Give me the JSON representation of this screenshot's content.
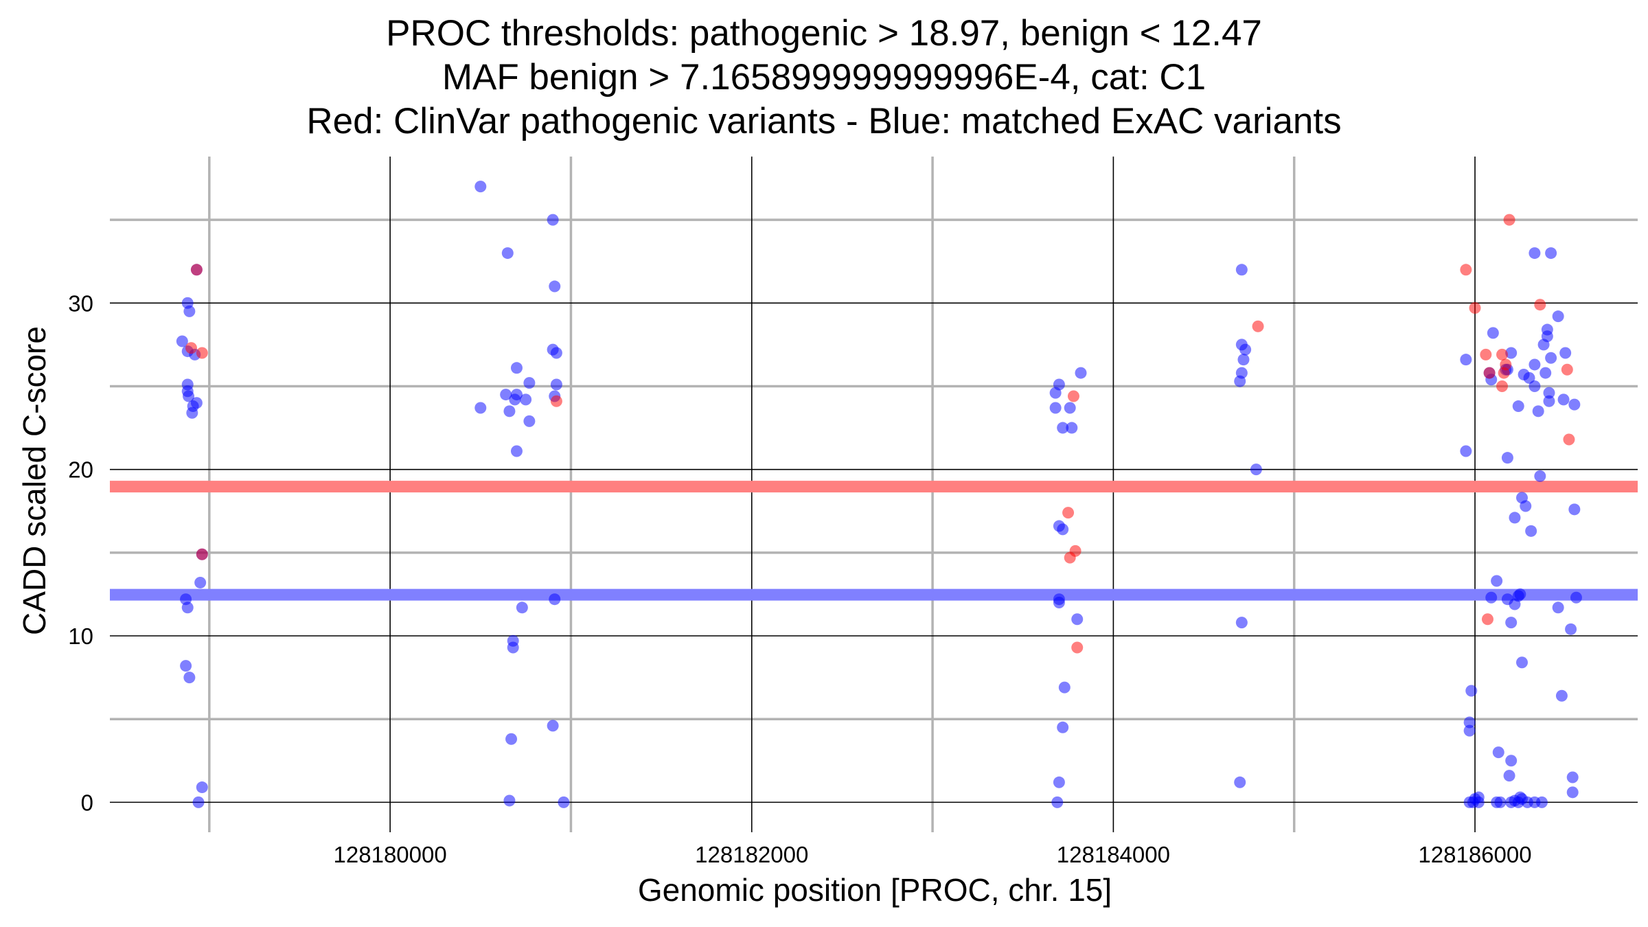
{
  "chart_data": {
    "type": "scatter",
    "title_lines": [
      "PROC thresholds: pathogenic > 18.97, benign < 12.47",
      "MAF benign > 7.165899999999996E-4, cat: C1",
      "Red: ClinVar pathogenic variants - Blue: matched ExAC variants"
    ],
    "xlabel": "Genomic position [PROC, chr. 15]",
    "ylabel": "CADD scaled C-score",
    "xlim": [
      128178450,
      128186900
    ],
    "ylim": [
      -1.8,
      38.8
    ],
    "x_ticks": [
      128180000,
      128182000,
      128184000,
      128186000
    ],
    "x_tick_labels": [
      "128180000",
      "128182000",
      "128184000",
      "128186000"
    ],
    "x_minor": [
      128179000,
      128181000,
      128183000,
      128185000
    ],
    "y_ticks": [
      0,
      10,
      20,
      30
    ],
    "y_tick_labels": [
      "0",
      "10",
      "20",
      "30"
    ],
    "y_minor": [
      5,
      15,
      25,
      35
    ],
    "grid": true,
    "thresholds": [
      {
        "name": "pathogenic",
        "value": 18.97,
        "color": "#ff8080"
      },
      {
        "name": "benign",
        "value": 12.47,
        "color": "#8080ff"
      }
    ],
    "series": [
      {
        "color": "#0000ff",
        "points": [
          [
            128178850,
            27.7
          ],
          [
            128178880,
            30.0
          ],
          [
            128178890,
            29.5
          ],
          [
            128178880,
            27.1
          ],
          [
            128178920,
            26.9
          ],
          [
            128178880,
            25.1
          ],
          [
            128178880,
            24.7
          ],
          [
            128178885,
            24.4
          ],
          [
            128178910,
            23.8
          ],
          [
            128178930,
            24.0
          ],
          [
            128178905,
            23.4
          ],
          [
            128178930,
            32.0
          ],
          [
            128178870,
            12.2
          ],
          [
            128178880,
            11.7
          ],
          [
            128178950,
            13.2
          ],
          [
            128178870,
            8.2
          ],
          [
            128178890,
            7.5
          ],
          [
            128178960,
            0.9
          ],
          [
            128178940,
            0.0
          ],
          [
            128178960,
            14.9
          ],
          [
            128180500,
            37.0
          ],
          [
            128180650,
            33.0
          ],
          [
            128180900,
            35.0
          ],
          [
            128180910,
            31.0
          ],
          [
            128180900,
            27.2
          ],
          [
            128180920,
            27.0
          ],
          [
            128180700,
            26.1
          ],
          [
            128180920,
            25.1
          ],
          [
            128180770,
            25.2
          ],
          [
            128180640,
            24.5
          ],
          [
            128180690,
            24.2
          ],
          [
            128180700,
            24.5
          ],
          [
            128180750,
            24.2
          ],
          [
            128180910,
            24.4
          ],
          [
            128180500,
            23.7
          ],
          [
            128180660,
            23.5
          ],
          [
            128180770,
            22.9
          ],
          [
            128180700,
            21.1
          ],
          [
            128180910,
            12.2
          ],
          [
            128180730,
            11.7
          ],
          [
            128180680,
            9.7
          ],
          [
            128180680,
            9.3
          ],
          [
            128180900,
            4.6
          ],
          [
            128180670,
            3.8
          ],
          [
            128180660,
            0.1
          ],
          [
            128180960,
            0.0
          ],
          [
            128183680,
            24.6
          ],
          [
            128183700,
            25.1
          ],
          [
            128183820,
            25.8
          ],
          [
            128183680,
            23.7
          ],
          [
            128183760,
            23.7
          ],
          [
            128183720,
            22.5
          ],
          [
            128183770,
            22.5
          ],
          [
            128183700,
            16.6
          ],
          [
            128183720,
            16.4
          ],
          [
            128183700,
            12.2
          ],
          [
            128183700,
            12.0
          ],
          [
            128183800,
            11.0
          ],
          [
            128183730,
            6.9
          ],
          [
            128183720,
            4.5
          ],
          [
            128183700,
            1.2
          ],
          [
            128183690,
            0.0
          ],
          [
            128184710,
            32.0
          ],
          [
            128184710,
            27.5
          ],
          [
            128184730,
            27.2
          ],
          [
            128184720,
            26.6
          ],
          [
            128184710,
            25.8
          ],
          [
            128184700,
            25.3
          ],
          [
            128184790,
            20.0
          ],
          [
            128184710,
            10.8
          ],
          [
            128184700,
            1.2
          ],
          [
            128186100,
            28.2
          ],
          [
            128185950,
            26.6
          ],
          [
            128186080,
            25.8
          ],
          [
            128186090,
            25.4
          ],
          [
            128186170,
            26.0
          ],
          [
            128186180,
            26.0
          ],
          [
            128186200,
            27.0
          ],
          [
            128186270,
            25.7
          ],
          [
            128186300,
            25.5
          ],
          [
            128186330,
            26.3
          ],
          [
            128186330,
            25.0
          ],
          [
            128186390,
            25.8
          ],
          [
            128186240,
            23.8
          ],
          [
            128186350,
            23.5
          ],
          [
            128186380,
            27.5
          ],
          [
            128186400,
            28.0
          ],
          [
            128186400,
            28.4
          ],
          [
            128186410,
            24.6
          ],
          [
            128186420,
            26.7
          ],
          [
            128186460,
            29.2
          ],
          [
            128186500,
            27.0
          ],
          [
            128186490,
            24.2
          ],
          [
            128186410,
            24.1
          ],
          [
            128186550,
            23.9
          ],
          [
            128186330,
            33.0
          ],
          [
            128186420,
            33.0
          ],
          [
            128186180,
            20.7
          ],
          [
            128185950,
            21.1
          ],
          [
            128186360,
            19.6
          ],
          [
            128186260,
            18.3
          ],
          [
            128186280,
            17.8
          ],
          [
            128186220,
            17.1
          ],
          [
            128186310,
            16.3
          ],
          [
            128186550,
            17.6
          ],
          [
            128186120,
            13.3
          ],
          [
            128186090,
            12.3
          ],
          [
            128186180,
            12.2
          ],
          [
            128186220,
            11.9
          ],
          [
            128186240,
            12.4
          ],
          [
            128186250,
            12.5
          ],
          [
            128186560,
            12.3
          ],
          [
            128186200,
            10.8
          ],
          [
            128186460,
            11.7
          ],
          [
            128186530,
            10.4
          ],
          [
            128186260,
            8.4
          ],
          [
            128186480,
            6.4
          ],
          [
            128185980,
            6.7
          ],
          [
            128185970,
            4.8
          ],
          [
            128185970,
            4.3
          ],
          [
            128186130,
            3.0
          ],
          [
            128186200,
            2.5
          ],
          [
            128186190,
            1.6
          ],
          [
            128186540,
            1.5
          ],
          [
            128186540,
            0.6
          ],
          [
            128185970,
            0.0
          ],
          [
            128185990,
            0.0
          ],
          [
            128186000,
            0.2
          ],
          [
            128186020,
            0.3
          ],
          [
            128186020,
            0.0
          ],
          [
            128186120,
            0.0
          ],
          [
            128186140,
            0.0
          ],
          [
            128186200,
            0.0
          ],
          [
            128186220,
            0.1
          ],
          [
            128186240,
            0.0
          ],
          [
            128186250,
            0.3
          ],
          [
            128186260,
            0.2
          ],
          [
            128186290,
            0.0
          ],
          [
            128186330,
            0.0
          ],
          [
            128186370,
            0.0
          ]
        ]
      },
      {
        "color": "#ff0000",
        "points": [
          [
            128178930,
            32.0
          ],
          [
            128178900,
            27.3
          ],
          [
            128178960,
            27.0
          ],
          [
            128178960,
            14.9
          ],
          [
            128180920,
            24.1
          ],
          [
            128183780,
            24.4
          ],
          [
            128183750,
            17.4
          ],
          [
            128183790,
            15.1
          ],
          [
            128183760,
            14.7
          ],
          [
            128183800,
            9.3
          ],
          [
            128184800,
            28.6
          ],
          [
            128185950,
            32.0
          ],
          [
            128186000,
            29.7
          ],
          [
            128186060,
            26.9
          ],
          [
            128186150,
            26.9
          ],
          [
            128186170,
            26.3
          ],
          [
            128186160,
            25.8
          ],
          [
            128186080,
            25.8
          ],
          [
            128186150,
            25.0
          ],
          [
            128186190,
            35.0
          ],
          [
            128186360,
            29.9
          ],
          [
            128186510,
            26.0
          ],
          [
            128186520,
            21.8
          ],
          [
            128186070,
            11.0
          ]
        ]
      }
    ]
  }
}
